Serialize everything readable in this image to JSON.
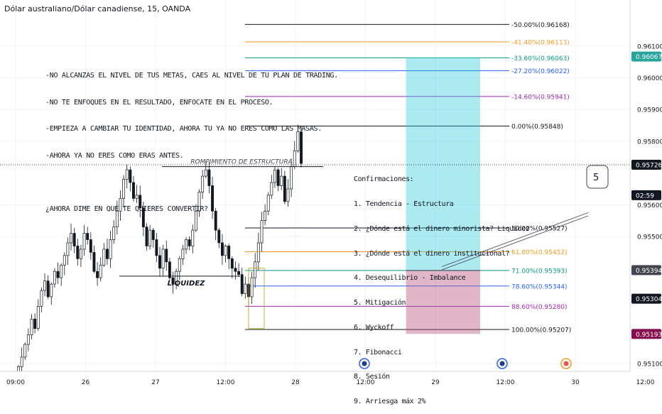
{
  "header": {
    "symbol_title": "Dólar australiano/Dólar canadiense, 15, OANDA"
  },
  "notes": [
    "-NO ALCANZAS EL NIVEL DE TUS METAS, CAES AL NIVEL DE TU PLAN DE TRADING.",
    "-NO TE ENFOQUES EN EL RESULTADO, ENFOCATE EN EL PROCESO.",
    "-EMPIEZA A CAMBIAR TU IDENTIDAD, AHORA TU YA NO ERES COMO LAS MASAS.",
    "-AHORA YA NO ERES COMO ERAS ANTES.",
    "",
    "¿AHORA DIME EN QUE TE QUIERES CONVERTIR?"
  ],
  "confirmations": {
    "title": "Confirmaciones:",
    "items": [
      "1. Tendencia - Estructura",
      "2. ¿Dónde está el dinero minorista? Liquidez",
      "3. ¿Dónde está el dinero institucional?",
      "4. Desequilibrio - Imbalance",
      "5. Mitigación",
      "6. Wyckoff",
      "7. Fibonacci",
      "8. Sesión",
      "9. Arriesga máx 2%"
    ]
  },
  "annotations": {
    "bos_label": "ROMPIMIENTO DE ESTRUCTURA",
    "liquidity_label": "LIQUIDEZ",
    "callout_number": "5"
  },
  "chart_data": {
    "type": "candlestick",
    "y_axis": {
      "min": 0.95075,
      "max": 0.96245,
      "ticks": [
        "0.96100",
        "0.96000",
        "0.95900",
        "0.95800",
        "0.95600",
        "0.95500",
        "0.95100"
      ],
      "tick_values": [
        0.961,
        0.96,
        0.959,
        0.958,
        0.956,
        0.955,
        0.951
      ]
    },
    "x_axis": {
      "labels": [
        "09:00",
        "26",
        "27",
        "12:00",
        "28",
        "12:00",
        "29",
        "12:00",
        "30",
        "12:00"
      ],
      "positions": [
        0.0,
        0.5,
        1.0,
        1.5,
        2.0,
        2.5,
        3.0,
        3.5,
        4.0,
        4.5
      ]
    },
    "fibonacci": [
      {
        "label": "-50.00%(0.96168)",
        "value": 0.96168,
        "color": "#131722"
      },
      {
        "label": "-41.40%(0.96113)",
        "value": 0.96113,
        "color": "#f59a23"
      },
      {
        "label": "-33.60%(0.96063)",
        "value": 0.96063,
        "color": "#089981"
      },
      {
        "label": "-27.20%(0.96022)",
        "value": 0.96022,
        "color": "#2962ff"
      },
      {
        "label": "-14.60%(0.95941)",
        "value": 0.95941,
        "color": "#9c27b0"
      },
      {
        "label": "0.00%(0.95848)",
        "value": 0.95848,
        "color": "#131722"
      },
      {
        "label": "50.00%(0.95527)",
        "value": 0.95527,
        "color": "#131722"
      },
      {
        "label": "61.80%(0.95452)",
        "value": 0.95452,
        "color": "#f59a23"
      },
      {
        "label": "71.00%(0.95393)",
        "value": 0.95393,
        "color": "#089981"
      },
      {
        "label": "78.60%(0.95344)",
        "value": 0.95344,
        "color": "#2962ff"
      },
      {
        "label": "88.60%(0.95280)",
        "value": 0.9528,
        "color": "#9c27b0"
      },
      {
        "label": "100.00%(0.95207)",
        "value": 0.95207,
        "color": "#131722"
      }
    ],
    "price_badges": [
      {
        "label": "0.96067",
        "value": 0.96067,
        "bg": "#26a69a",
        "fg": "#ffffff"
      },
      {
        "label": "0.95726",
        "value": 0.95726,
        "bg": "#131722",
        "fg": "#ffffff"
      },
      {
        "label": "02:59",
        "value": 0.9563,
        "bg": "#131722",
        "fg": "#ffffff"
      },
      {
        "label": "0.95394",
        "value": 0.95394,
        "bg": "#434651",
        "fg": "#ffffff"
      },
      {
        "label": "0.95304",
        "value": 0.95304,
        "bg": "#131722",
        "fg": "#ffffff"
      },
      {
        "label": "0.95193",
        "value": 0.95193,
        "bg": "#880e4f",
        "fg": "#ffffff"
      }
    ],
    "position": {
      "entry": 0.95393,
      "target": 0.96063,
      "stop": 0.95193,
      "x_start": 2.79,
      "x_end": 3.32
    },
    "candles_close": [
      0.9509,
      0.9512,
      0.9516,
      0.9519,
      0.9524,
      0.9521,
      0.9528,
      0.9533,
      0.9536,
      0.9531,
      0.9535,
      0.9539,
      0.9537,
      0.9541,
      0.9544,
      0.9548,
      0.9551,
      0.9547,
      0.9543,
      0.9546,
      0.9551,
      0.9549,
      0.9545,
      0.9539,
      0.9537,
      0.9541,
      0.9546,
      0.9543,
      0.9549,
      0.9553,
      0.9558,
      0.9562,
      0.9568,
      0.9571,
      0.9567,
      0.9562,
      0.9563,
      0.9559,
      0.9553,
      0.9547,
      0.9552,
      0.9549,
      0.9544,
      0.954,
      0.9546,
      0.9542,
      0.9537,
      0.9535,
      0.9539,
      0.9543,
      0.9546,
      0.9549,
      0.9547,
      0.9552,
      0.9558,
      0.9564,
      0.9569,
      0.9571,
      0.9566,
      0.9558,
      0.9552,
      0.9548,
      0.9544,
      0.9547,
      0.9543,
      0.954,
      0.9539,
      0.9538,
      0.9532,
      0.9535,
      0.9531,
      0.9537,
      0.9542,
      0.9548,
      0.9555,
      0.9558,
      0.9563,
      0.9567,
      0.9571,
      0.9566,
      0.9569,
      0.9561,
      0.9565,
      0.9572,
      0.9577,
      0.9583,
      0.9573
    ]
  }
}
